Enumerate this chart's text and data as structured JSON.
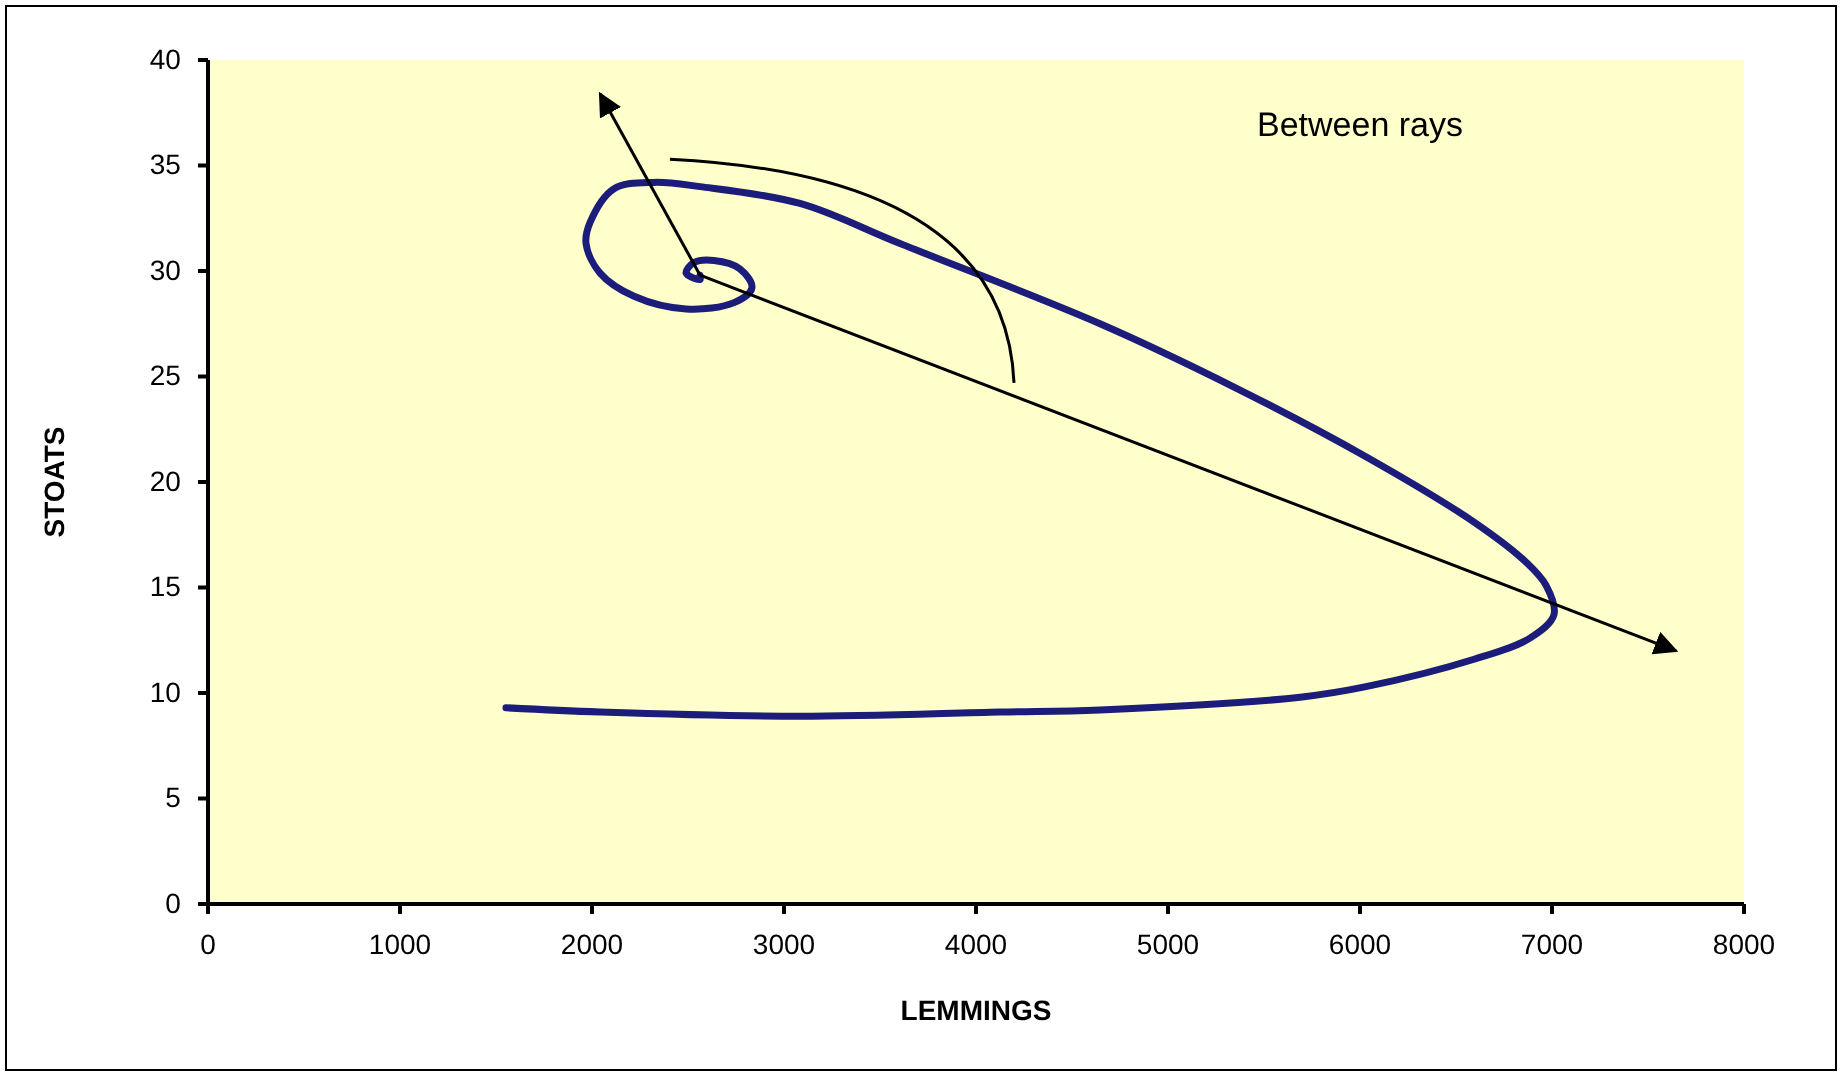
{
  "chart_data": {
    "type": "line",
    "xlabel": "LEMMINGS",
    "ylabel": "STOATS",
    "annotations": [
      "Between rays"
    ],
    "xlim": [
      0,
      8000
    ],
    "xticks": [
      0,
      1000,
      2000,
      3000,
      4000,
      5000,
      6000,
      7000,
      8000
    ],
    "ylim": [
      0,
      40
    ],
    "yticks": [
      0,
      5,
      10,
      15,
      20,
      25,
      30,
      35,
      40
    ],
    "grid": false,
    "marker": "none",
    "line_style": "solid",
    "series": [
      {
        "color": "#1c1c7a",
        "x": [
          1552,
          2042,
          3083,
          4125,
          4646,
          5688,
          6031,
          6594,
          6885,
          7010,
          6969,
          6865,
          6594,
          6031,
          5344,
          4646,
          3604,
          3083,
          2563,
          2323,
          2115,
          1990,
          1969,
          2042,
          2219,
          2490,
          2740,
          2833,
          2771,
          2635,
          2531,
          2490,
          2563,
          2563
        ],
        "values": [
          9.3,
          9.1,
          8.9,
          9.1,
          9.2,
          9.8,
          10.3,
          11.6,
          12.6,
          13.7,
          15.1,
          16.2,
          18.1,
          21.2,
          24.5,
          27.5,
          31.3,
          33.2,
          34.0,
          34.2,
          33.9,
          32.3,
          31.3,
          29.9,
          28.8,
          28.2,
          28.5,
          29.2,
          30.1,
          30.5,
          30.4,
          29.9,
          29.6,
          29.8
        ]
      }
    ]
  }
}
